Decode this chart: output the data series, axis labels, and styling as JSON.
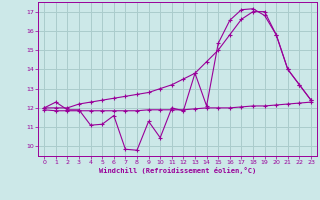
{
  "bg_color": "#cce8e8",
  "grid_color": "#aacccc",
  "line_color": "#990099",
  "xlabel": "Windchill (Refroidissement éolien,°C)",
  "xlim": [
    -0.5,
    23.5
  ],
  "ylim": [
    9.5,
    17.5
  ],
  "yticks": [
    10,
    11,
    12,
    13,
    14,
    15,
    16,
    17
  ],
  "xticks": [
    0,
    1,
    2,
    3,
    4,
    5,
    6,
    7,
    8,
    9,
    10,
    11,
    12,
    13,
    14,
    15,
    16,
    17,
    18,
    19,
    20,
    21,
    22,
    23
  ],
  "series1_x": [
    0,
    1,
    2,
    3,
    4,
    5,
    6,
    7,
    8,
    9,
    10,
    11,
    12,
    13,
    14,
    15,
    16,
    17,
    18,
    19,
    20,
    21,
    22,
    23
  ],
  "series1_y": [
    12.0,
    12.3,
    11.9,
    11.9,
    11.1,
    11.15,
    11.6,
    9.85,
    9.8,
    11.3,
    10.45,
    12.0,
    11.85,
    13.8,
    12.1,
    15.35,
    16.55,
    17.1,
    17.15,
    16.8,
    15.8,
    14.0,
    13.2,
    12.4
  ],
  "series2_x": [
    0,
    1,
    2,
    3,
    4,
    5,
    6,
    7,
    8,
    9,
    10,
    11,
    12,
    13,
    14,
    15,
    16,
    17,
    18,
    19,
    20,
    21,
    22,
    23
  ],
  "series2_y": [
    12.0,
    12.0,
    12.0,
    12.2,
    12.3,
    12.4,
    12.5,
    12.6,
    12.7,
    12.8,
    13.0,
    13.2,
    13.5,
    13.8,
    14.4,
    15.0,
    15.8,
    16.6,
    17.0,
    17.0,
    15.8,
    14.0,
    13.2,
    12.4
  ],
  "series3_x": [
    0,
    1,
    2,
    3,
    4,
    5,
    6,
    7,
    8,
    9,
    10,
    11,
    12,
    13,
    14,
    15,
    16,
    17,
    18,
    19,
    20,
    21,
    22,
    23
  ],
  "series3_y": [
    11.9,
    11.85,
    11.85,
    11.85,
    11.85,
    11.85,
    11.85,
    11.85,
    11.85,
    11.9,
    11.9,
    11.9,
    11.9,
    11.95,
    12.0,
    12.0,
    12.0,
    12.05,
    12.1,
    12.1,
    12.15,
    12.2,
    12.25,
    12.3
  ]
}
